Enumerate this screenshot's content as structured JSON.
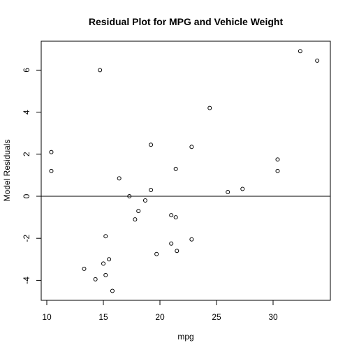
{
  "chart_data": {
    "type": "scatter",
    "title": "Residual Plot for MPG and Vehicle Weight",
    "xlabel": "mpg",
    "ylabel": "Model Residuals",
    "xlim": [
      10,
      34
    ],
    "ylim": [
      -5,
      7
    ],
    "x_ticks": [
      10,
      15,
      20,
      25,
      30
    ],
    "y_ticks": [
      -4,
      -2,
      0,
      2,
      4,
      6
    ],
    "reference_line_y": 0,
    "grid": false,
    "legend": "none",
    "points": [
      {
        "x": 10.4,
        "y": 2.1
      },
      {
        "x": 10.4,
        "y": 1.2
      },
      {
        "x": 13.3,
        "y": -3.45
      },
      {
        "x": 14.3,
        "y": -3.95
      },
      {
        "x": 14.7,
        "y": 6.0
      },
      {
        "x": 15.0,
        "y": -3.2
      },
      {
        "x": 15.2,
        "y": -1.9
      },
      {
        "x": 15.2,
        "y": -3.75
      },
      {
        "x": 15.5,
        "y": -3.0
      },
      {
        "x": 15.8,
        "y": -4.5
      },
      {
        "x": 16.4,
        "y": 0.85
      },
      {
        "x": 17.3,
        "y": 0.0
      },
      {
        "x": 17.8,
        "y": -1.1
      },
      {
        "x": 18.1,
        "y": -0.7
      },
      {
        "x": 18.7,
        "y": -0.2
      },
      {
        "x": 19.2,
        "y": 2.45
      },
      {
        "x": 19.2,
        "y": 0.3
      },
      {
        "x": 19.7,
        "y": -2.75
      },
      {
        "x": 21.0,
        "y": -0.9
      },
      {
        "x": 21.0,
        "y": -2.25
      },
      {
        "x": 21.4,
        "y": 1.3
      },
      {
        "x": 21.4,
        "y": -1.0
      },
      {
        "x": 21.5,
        "y": -2.6
      },
      {
        "x": 22.8,
        "y": 2.35
      },
      {
        "x": 22.8,
        "y": -2.05
      },
      {
        "x": 24.4,
        "y": 4.2
      },
      {
        "x": 26.0,
        "y": 0.2
      },
      {
        "x": 27.3,
        "y": 0.35
      },
      {
        "x": 30.4,
        "y": 1.75
      },
      {
        "x": 30.4,
        "y": 1.2
      },
      {
        "x": 32.4,
        "y": 6.9
      },
      {
        "x": 33.9,
        "y": 6.45
      }
    ]
  }
}
